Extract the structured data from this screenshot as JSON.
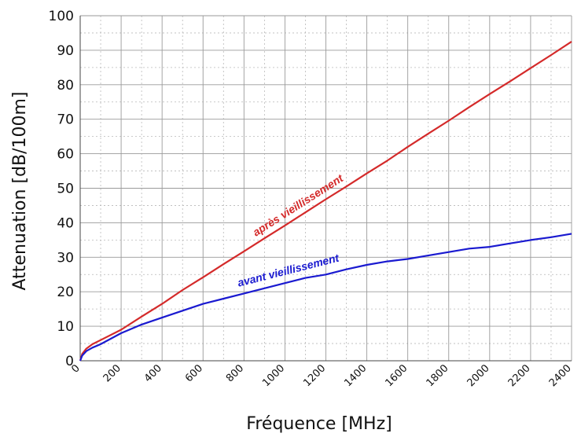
{
  "chart_data": {
    "type": "line",
    "title": "",
    "xlabel": "Fréquence [MHz]",
    "ylabel": "Attenuation [dB/100m]",
    "xlim": [
      0,
      2400
    ],
    "ylim": [
      0,
      100
    ],
    "x_ticks": [
      0,
      200,
      400,
      600,
      800,
      1000,
      1200,
      1400,
      1600,
      1800,
      2000,
      2200,
      2400
    ],
    "y_ticks": [
      0,
      10,
      20,
      30,
      40,
      50,
      60,
      70,
      80,
      90,
      100
    ],
    "grid": true,
    "series": [
      {
        "name": "après vieillissement",
        "color": "#d42a2a",
        "points": [
          [
            0,
            0
          ],
          [
            10,
            2
          ],
          [
            30,
            3.5
          ],
          [
            60,
            4.8
          ],
          [
            100,
            6
          ],
          [
            200,
            9
          ],
          [
            300,
            12.8
          ],
          [
            400,
            16.5
          ],
          [
            500,
            20.5
          ],
          [
            600,
            24.2
          ],
          [
            700,
            28
          ],
          [
            800,
            31.7
          ],
          [
            900,
            35.5
          ],
          [
            1000,
            39.2
          ],
          [
            1100,
            43
          ],
          [
            1200,
            46.8
          ],
          [
            1300,
            50.5
          ],
          [
            1400,
            54.3
          ],
          [
            1500,
            58
          ],
          [
            1600,
            62
          ],
          [
            1700,
            65.8
          ],
          [
            1800,
            69.6
          ],
          [
            1900,
            73.5
          ],
          [
            2000,
            77.3
          ],
          [
            2100,
            81
          ],
          [
            2200,
            84.8
          ],
          [
            2300,
            88.6
          ],
          [
            2400,
            92.5
          ]
        ]
      },
      {
        "name": "avant vieillissement",
        "color": "#1a1ad0",
        "points": [
          [
            0,
            0
          ],
          [
            10,
            1.5
          ],
          [
            30,
            2.8
          ],
          [
            60,
            3.8
          ],
          [
            100,
            4.8
          ],
          [
            200,
            8
          ],
          [
            300,
            10.5
          ],
          [
            400,
            12.5
          ],
          [
            500,
            14.5
          ],
          [
            600,
            16.5
          ],
          [
            700,
            18
          ],
          [
            800,
            19.5
          ],
          [
            900,
            21
          ],
          [
            1000,
            22.5
          ],
          [
            1100,
            24
          ],
          [
            1200,
            25
          ],
          [
            1300,
            26.5
          ],
          [
            1400,
            27.8
          ],
          [
            1500,
            28.8
          ],
          [
            1600,
            29.5
          ],
          [
            1700,
            30.5
          ],
          [
            1800,
            31.5
          ],
          [
            1900,
            32.5
          ],
          [
            2000,
            33
          ],
          [
            2100,
            34
          ],
          [
            2200,
            35
          ],
          [
            2300,
            35.8
          ],
          [
            2400,
            36.8
          ]
        ]
      }
    ]
  }
}
